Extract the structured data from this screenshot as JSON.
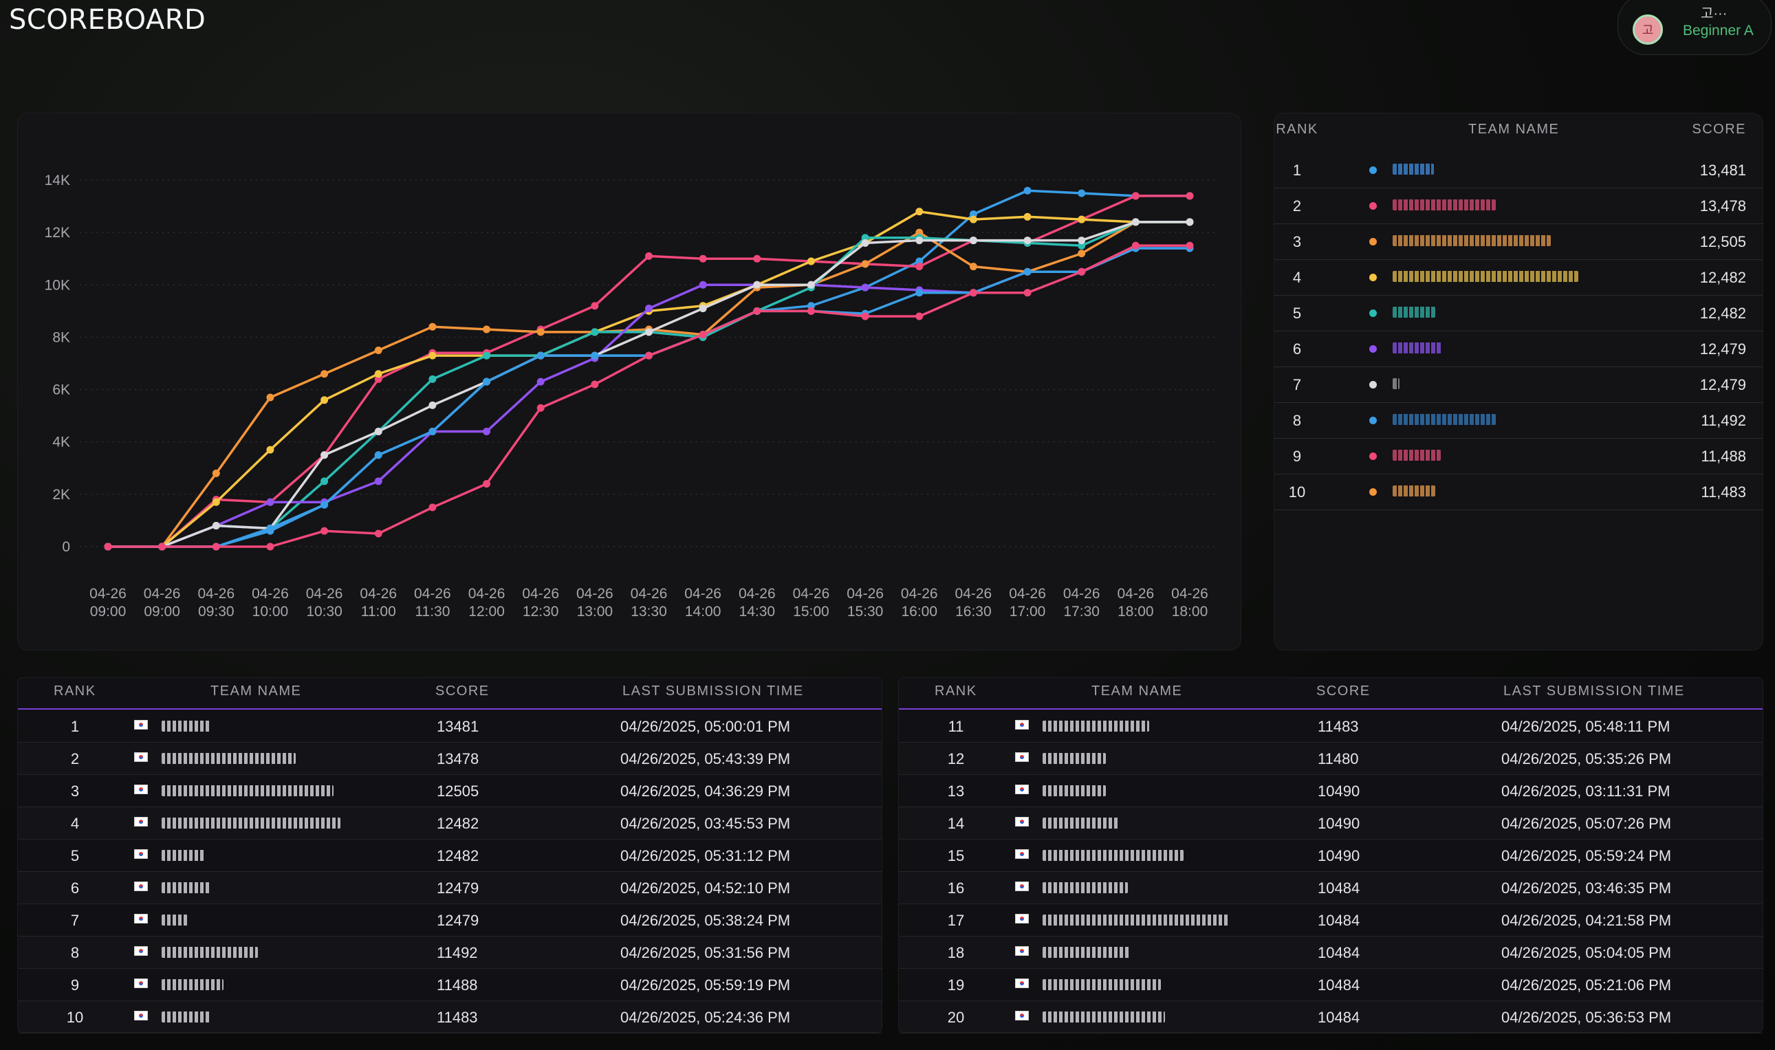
{
  "header": {
    "title": "SCOREBOARD",
    "user": {
      "avatar_glyph": "고",
      "name": "고···",
      "level": "Beginner A"
    }
  },
  "chart_data": {
    "type": "line",
    "x": [
      "04-26 09:00",
      "04-26 09:00",
      "04-26 09:30",
      "04-26 10:00",
      "04-26 10:30",
      "04-26 11:00",
      "04-26 11:30",
      "04-26 12:00",
      "04-26 12:30",
      "04-26 13:00",
      "04-26 13:30",
      "04-26 14:00",
      "04-26 14:30",
      "04-26 15:00",
      "04-26 15:30",
      "04-26 16:00",
      "04-26 16:30",
      "04-26 17:00",
      "04-26 17:30",
      "04-26 18:00",
      "04-26 18:00"
    ],
    "ylim": [
      0,
      14000
    ],
    "yticks": [
      "0",
      "2K",
      "4K",
      "6K",
      "8K",
      "10K",
      "12K",
      "14K"
    ],
    "grid": true,
    "series": [
      {
        "color": "#3a9ee6",
        "values": [
          0,
          0,
          0,
          600,
          1600,
          3500,
          4400,
          6300,
          7300,
          7300,
          7300,
          8100,
          9000,
          9200,
          9900,
          10900,
          12700,
          13600,
          13500,
          13400,
          13400
        ]
      },
      {
        "color": "#f0487a",
        "values": [
          0,
          0,
          1800,
          1700,
          3500,
          6400,
          7400,
          7400,
          8300,
          9200,
          11100,
          11000,
          11000,
          10900,
          10800,
          10700,
          11700,
          11600,
          12500,
          13400,
          13400
        ]
      },
      {
        "color": "#f3953a",
        "values": [
          0,
          0,
          2800,
          5700,
          6600,
          7500,
          8400,
          8300,
          8200,
          8200,
          8300,
          8100,
          9900,
          10000,
          10800,
          12000,
          10700,
          10500,
          11200,
          12400,
          12400
        ]
      },
      {
        "color": "#f5c542",
        "values": [
          0,
          0,
          1700,
          3700,
          5600,
          6600,
          7300,
          7300,
          7300,
          8200,
          9000,
          9200,
          10000,
          10900,
          11600,
          12800,
          12500,
          12600,
          12500,
          12400,
          12400
        ]
      },
      {
        "color": "#2bbdb2",
        "values": [
          0,
          0,
          800,
          700,
          2500,
          4400,
          6400,
          7300,
          7300,
          8200,
          8200,
          8000,
          9000,
          9900,
          11800,
          11800,
          11700,
          11600,
          11500,
          12400,
          12400
        ]
      },
      {
        "color": "#9052f0",
        "values": [
          0,
          0,
          800,
          1700,
          1700,
          2500,
          4400,
          4400,
          6300,
          7200,
          9100,
          10000,
          10000,
          10000,
          9900,
          9800,
          9700,
          10500,
          10500,
          11400,
          11400
        ]
      },
      {
        "color": "#d9d9de",
        "values": [
          0,
          0,
          800,
          700,
          3500,
          4400,
          5400,
          6300,
          7300,
          7300,
          8200,
          9100,
          10000,
          10000,
          11600,
          11700,
          11700,
          11700,
          11700,
          12400,
          12400
        ]
      },
      {
        "color": "#3a9ee6",
        "values": [
          0,
          0,
          0,
          700,
          1600,
          3500,
          4400,
          6300,
          7300,
          7300,
          7300,
          8100,
          9000,
          9000,
          8900,
          9700,
          9700,
          10500,
          10500,
          11400,
          11400
        ]
      },
      {
        "color": "#f0487a",
        "values": [
          0,
          0,
          0,
          0,
          600,
          500,
          1500,
          2400,
          5300,
          6200,
          7300,
          8100,
          9000,
          9000,
          8800,
          8800,
          9700,
          9700,
          10500,
          11500,
          11500
        ]
      }
    ]
  },
  "top_panel": {
    "headers": {
      "rank": "RANK",
      "team": "TEAM NAME",
      "score": "SCORE"
    },
    "rows": [
      {
        "rank": "1",
        "color": "#3a9ee6",
        "score": "13,481",
        "mask_w": 60,
        "mask_color": "#3a7fc6"
      },
      {
        "rank": "2",
        "color": "#f0487a",
        "score": "13,478",
        "mask_w": 150,
        "mask_color": "#c2456a"
      },
      {
        "rank": "3",
        "color": "#f3953a",
        "score": "12,505",
        "mask_w": 230,
        "mask_color": "#c98a45"
      },
      {
        "rank": "4",
        "color": "#f5c542",
        "score": "12,482",
        "mask_w": 270,
        "mask_color": "#c9a845"
      },
      {
        "rank": "5",
        "color": "#2bbdb2",
        "score": "12,482",
        "mask_w": 62,
        "mask_color": "#2c9f95"
      },
      {
        "rank": "6",
        "color": "#9052f0",
        "score": "12,479",
        "mask_w": 72,
        "mask_color": "#7a4bd0"
      },
      {
        "rank": "7",
        "color": "#d9d9de",
        "score": "12,479",
        "mask_w": 10,
        "mask_color": "#8c8c92"
      },
      {
        "rank": "8",
        "color": "#3a9ee6",
        "score": "11,492",
        "mask_w": 150,
        "mask_color": "#2e6ea8"
      },
      {
        "rank": "9",
        "color": "#f0487a",
        "score": "11,488",
        "mask_w": 70,
        "mask_color": "#c2456a"
      },
      {
        "rank": "10",
        "color": "#f3953a",
        "score": "11,483",
        "mask_w": 62,
        "mask_color": "#c98a45"
      }
    ]
  },
  "table_left": {
    "headers": {
      "rank": "RANK",
      "team": "TEAM NAME",
      "score": "SCORE",
      "time": "LAST SUBMISSION TIME"
    },
    "rows": [
      {
        "rank": "1",
        "score": "13481",
        "time": "04/26/2025, 05:00:01 PM",
        "mask_w": 70
      },
      {
        "rank": "2",
        "score": "13478",
        "time": "04/26/2025, 05:43:39 PM",
        "mask_w": 195
      },
      {
        "rank": "3",
        "score": "12505",
        "time": "04/26/2025, 04:36:29 PM",
        "mask_w": 250
      },
      {
        "rank": "4",
        "score": "12482",
        "time": "04/26/2025, 03:45:53 PM",
        "mask_w": 260
      },
      {
        "rank": "5",
        "score": "12482",
        "time": "04/26/2025, 05:31:12 PM",
        "mask_w": 62
      },
      {
        "rank": "6",
        "score": "12479",
        "time": "04/26/2025, 04:52:10 PM",
        "mask_w": 72
      },
      {
        "rank": "7",
        "score": "12479",
        "time": "04/26/2025, 05:38:24 PM",
        "mask_w": 38
      },
      {
        "rank": "8",
        "score": "11492",
        "time": "04/26/2025, 05:31:56 PM",
        "mask_w": 140
      },
      {
        "rank": "9",
        "score": "11488",
        "time": "04/26/2025, 05:59:19 PM",
        "mask_w": 90
      },
      {
        "rank": "10",
        "score": "11483",
        "time": "04/26/2025, 05:24:36 PM",
        "mask_w": 70
      }
    ]
  },
  "table_right": {
    "headers": {
      "rank": "RANK",
      "team": "TEAM NAME",
      "score": "SCORE",
      "time": "LAST SUBMISSION TIME"
    },
    "rows": [
      {
        "rank": "11",
        "score": "11483",
        "time": "04/26/2025, 05:48:11 PM",
        "mask_w": 155
      },
      {
        "rank": "12",
        "score": "11480",
        "time": "04/26/2025, 05:35:26 PM",
        "mask_w": 92
      },
      {
        "rank": "13",
        "score": "10490",
        "time": "04/26/2025, 03:11:31 PM",
        "mask_w": 92
      },
      {
        "rank": "14",
        "score": "10490",
        "time": "04/26/2025, 05:07:26 PM",
        "mask_w": 112
      },
      {
        "rank": "15",
        "score": "10490",
        "time": "04/26/2025, 05:59:24 PM",
        "mask_w": 205
      },
      {
        "rank": "16",
        "score": "10484",
        "time": "04/26/2025, 03:46:35 PM",
        "mask_w": 124
      },
      {
        "rank": "17",
        "score": "10484",
        "time": "04/26/2025, 04:21:58 PM",
        "mask_w": 270
      },
      {
        "rank": "18",
        "score": "10484",
        "time": "04/26/2025, 05:04:05 PM",
        "mask_w": 128
      },
      {
        "rank": "19",
        "score": "10484",
        "time": "04/26/2025, 05:21:06 PM",
        "mask_w": 172
      },
      {
        "rank": "20",
        "score": "10484",
        "time": "04/26/2025, 05:36:53 PM",
        "mask_w": 178
      }
    ]
  }
}
